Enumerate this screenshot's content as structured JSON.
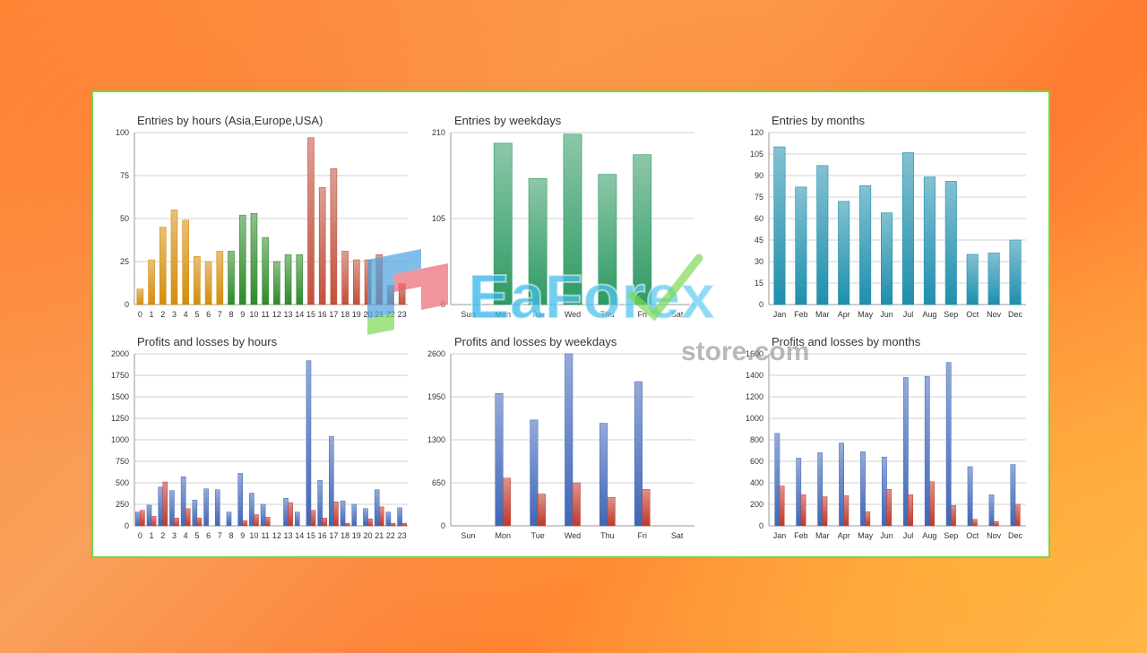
{
  "watermark": {
    "line1": "EaForex",
    "line2": "store.com"
  },
  "chart_data": [
    {
      "type": "bar",
      "title": "Entries by hours (Asia,Europe,USA)",
      "categories": [
        "0",
        "1",
        "2",
        "3",
        "4",
        "5",
        "6",
        "7",
        "8",
        "9",
        "10",
        "11",
        "12",
        "13",
        "14",
        "15",
        "16",
        "17",
        "18",
        "19",
        "20",
        "21",
        "22",
        "23"
      ],
      "values": [
        9,
        26,
        45,
        55,
        49,
        28,
        25,
        31,
        31,
        52,
        53,
        39,
        25,
        29,
        29,
        97,
        68,
        79,
        31,
        26,
        26,
        29,
        11,
        12
      ],
      "colors": [
        "#d48c0c",
        "#d48c0c",
        "#d48c0c",
        "#d48c0c",
        "#d48c0c",
        "#d48c0c",
        "#d48c0c",
        "#d48c0c",
        "#2f8a2a",
        "#2f8a2a",
        "#2f8a2a",
        "#2f8a2a",
        "#2f8a2a",
        "#2f8a2a",
        "#2f8a2a",
        "#c2503a",
        "#c2503a",
        "#c2503a",
        "#c2503a",
        "#c2503a",
        "#c2503a",
        "#c2503a",
        "#c2503a",
        "#c2503a"
      ],
      "ylim": [
        0,
        100
      ],
      "yticks": [
        "0",
        "25",
        "50",
        "75",
        "100"
      ],
      "grid": true
    },
    {
      "type": "bar",
      "title": "Entries by weekdays",
      "categories": [
        "Sun",
        "Mon",
        "Tue",
        "Wed",
        "Thu",
        "Fri",
        "Sat"
      ],
      "values": [
        0,
        197,
        154,
        208,
        159,
        183,
        0
      ],
      "color": "#2e9a62",
      "ylim": [
        0,
        210
      ],
      "yticks": [
        "0",
        "105",
        "210"
      ],
      "grid": true
    },
    {
      "type": "bar",
      "title": "Entries by months",
      "categories": [
        "Jan",
        "Feb",
        "Mar",
        "Apr",
        "May",
        "Jun",
        "Jul",
        "Aug",
        "Sep",
        "Oct",
        "Nov",
        "Dec"
      ],
      "values": [
        110,
        82,
        97,
        72,
        83,
        64,
        106,
        89,
        86,
        35,
        36,
        45
      ],
      "color": "#1e8fad",
      "ylim": [
        0,
        120
      ],
      "yticks": [
        "0",
        "15",
        "30",
        "45",
        "60",
        "75",
        "90",
        "105",
        "120"
      ],
      "grid": true
    },
    {
      "type": "bar",
      "title": "Profits and losses by hours",
      "categories": [
        "0",
        "1",
        "2",
        "3",
        "4",
        "5",
        "6",
        "7",
        "8",
        "9",
        "10",
        "11",
        "12",
        "13",
        "14",
        "15",
        "16",
        "17",
        "18",
        "19",
        "20",
        "21",
        "22",
        "23"
      ],
      "series": [
        {
          "values": [
            160,
            240,
            450,
            410,
            570,
            300,
            430,
            420,
            160,
            610,
            380,
            250,
            0,
            320,
            160,
            1920,
            530,
            1040,
            290,
            250,
            200,
            420,
            160,
            210
          ],
          "color": "#3f66b8"
        },
        {
          "values": [
            180,
            110,
            510,
            90,
            200,
            90,
            0,
            0,
            0,
            60,
            130,
            100,
            0,
            270,
            0,
            180,
            90,
            280,
            30,
            0,
            80,
            220,
            30,
            30
          ],
          "color": "#c0392b"
        }
      ],
      "ylim": [
        0,
        2000
      ],
      "yticks": [
        "0",
        "250",
        "500",
        "750",
        "1000",
        "1250",
        "1500",
        "1750",
        "2000"
      ],
      "grid": true
    },
    {
      "type": "bar",
      "title": "Profits and losses by weekdays",
      "categories": [
        "Sun",
        "Mon",
        "Tue",
        "Wed",
        "Thu",
        "Fri",
        "Sat"
      ],
      "series": [
        {
          "values": [
            0,
            2000,
            1600,
            2600,
            1550,
            2180,
            0
          ],
          "color": "#3f66b8"
        },
        {
          "values": [
            0,
            720,
            480,
            650,
            430,
            550,
            0
          ],
          "color": "#c0392b"
        }
      ],
      "ylim": [
        0,
        2600
      ],
      "yticks": [
        "0",
        "650",
        "1300",
        "1950",
        "2600"
      ],
      "grid": true
    },
    {
      "type": "bar",
      "title": "Profits and losses by months",
      "categories": [
        "Jan",
        "Feb",
        "Mar",
        "Apr",
        "May",
        "Jun",
        "Jul",
        "Aug",
        "Sep",
        "Oct",
        "Nov",
        "Dec"
      ],
      "series": [
        {
          "values": [
            860,
            630,
            680,
            770,
            690,
            640,
            1380,
            1390,
            1520,
            550,
            290,
            570
          ],
          "color": "#3f66b8"
        },
        {
          "values": [
            370,
            290,
            270,
            280,
            130,
            340,
            290,
            410,
            190,
            60,
            40,
            200
          ],
          "color": "#c0392b"
        }
      ],
      "ylim": [
        0,
        1600
      ],
      "yticks": [
        "0",
        "200",
        "400",
        "600",
        "800",
        "1000",
        "1200",
        "1400",
        "1600"
      ],
      "grid": true
    }
  ]
}
